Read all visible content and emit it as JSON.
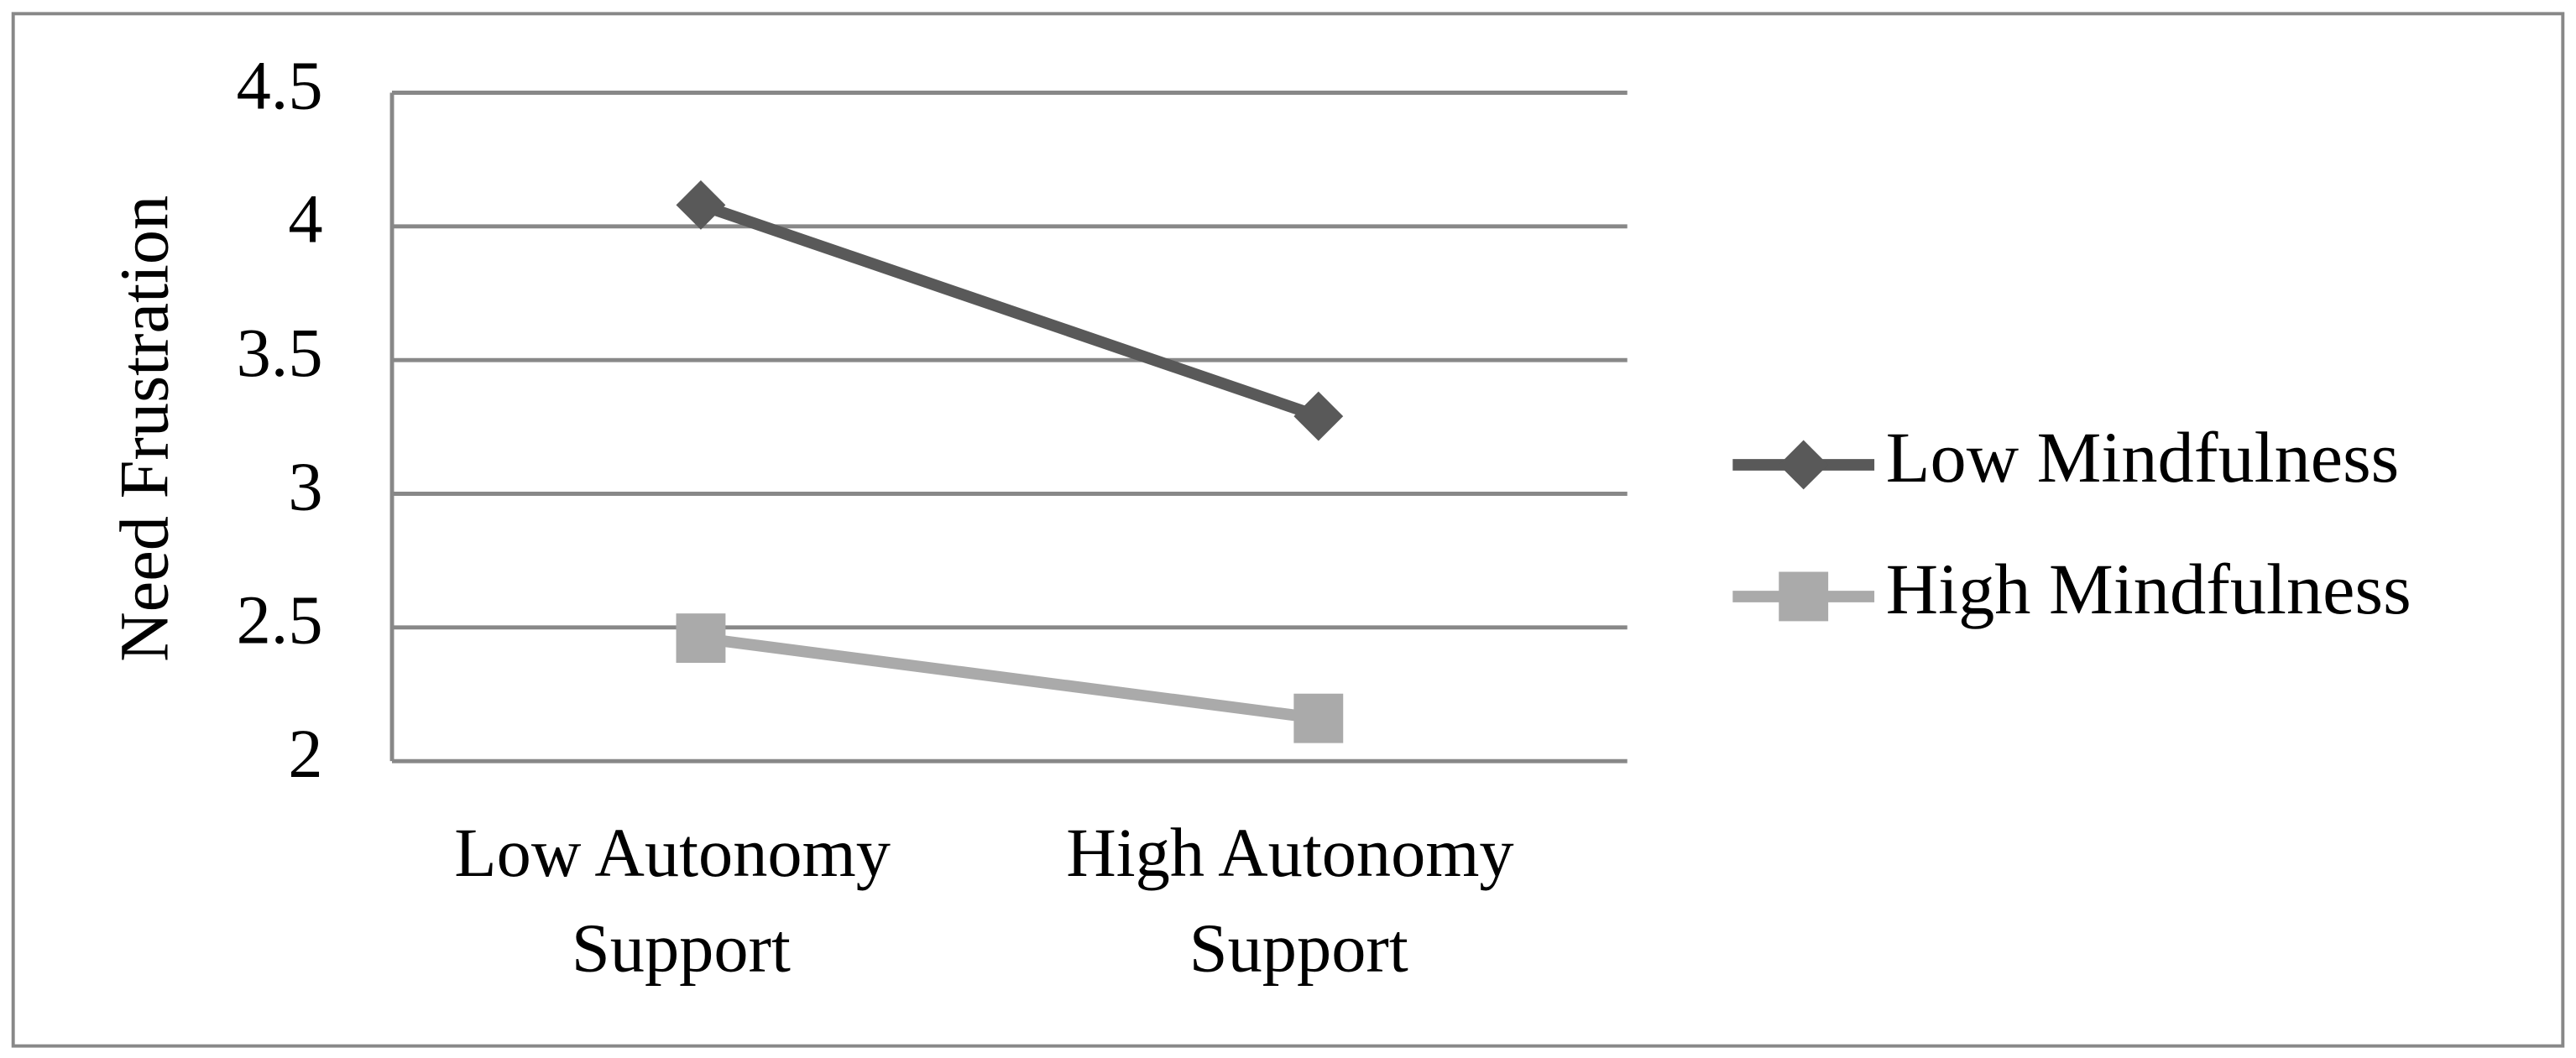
{
  "chart_data": {
    "type": "line",
    "y_label": "Need Frustration",
    "categories": [
      "Low Autonomy Support",
      "High Autonomy Support"
    ],
    "series": [
      {
        "name": "Low Mindfulness",
        "color": "#595959",
        "marker": "diamond",
        "values": [
          4.08,
          3.29
        ]
      },
      {
        "name": "High Mindfulness",
        "color": "#aaaaaa",
        "marker": "square",
        "values": [
          2.46,
          2.16
        ]
      }
    ],
    "ylim": [
      2,
      4.5
    ],
    "yticks": [
      2,
      2.5,
      3,
      3.5,
      4,
      4.5
    ],
    "grid": true,
    "legend": "right"
  }
}
